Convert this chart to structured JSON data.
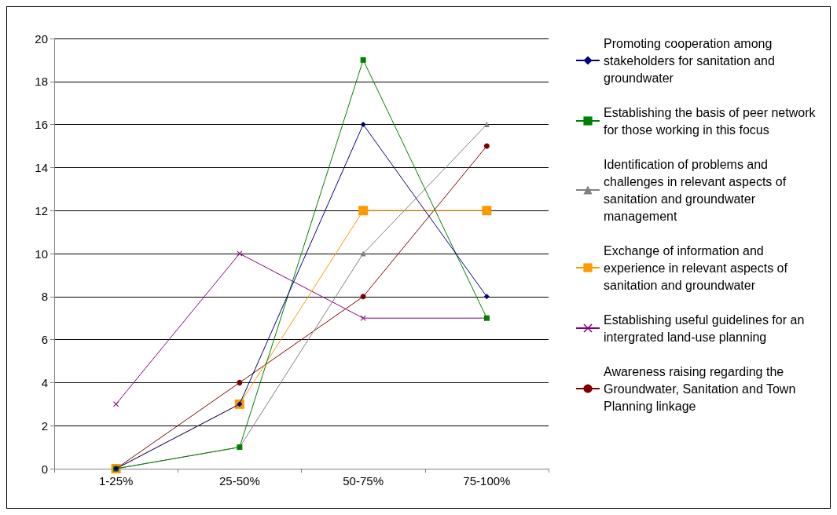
{
  "chart_data": {
    "type": "line",
    "categories": [
      "1-25%",
      "25-50%",
      "50-75%",
      "75-100%"
    ],
    "series": [
      {
        "name": "Promoting cooperation among stakeholders for sanitation and groundwater",
        "color": "#000080",
        "marker": "diamond",
        "values": [
          0,
          3,
          16,
          8
        ]
      },
      {
        "name": "Establishing the basis of peer network for those working in this focus",
        "color": "#008000",
        "marker": "square",
        "values": [
          0,
          1,
          19,
          7
        ]
      },
      {
        "name": "Identification of problems and challenges in relevant aspects of sanitation and groundwater management",
        "color": "#808080",
        "marker": "triangle",
        "values": [
          0,
          1,
          10,
          16
        ]
      },
      {
        "name": "Exchange of information and experience in relevant aspects of sanitation and groundwater",
        "color": "#ff9900",
        "marker": "square",
        "values": [
          0,
          3,
          12,
          12
        ]
      },
      {
        "name": "Establishing useful guidelines for an intergrated land-use planning",
        "color": "#800080",
        "marker": "cross",
        "values": [
          3,
          10,
          7,
          7
        ]
      },
      {
        "name": "Awareness raising regarding the Groundwater, Sanitation and Town Planning linkage",
        "color": "#800000",
        "marker": "circle",
        "values": [
          0,
          4,
          8,
          15
        ]
      }
    ],
    "ylim": [
      0,
      20
    ],
    "yticks": [
      0,
      2,
      4,
      6,
      8,
      10,
      12,
      14,
      16,
      18,
      20
    ],
    "grid": "y",
    "legend": "right",
    "line_style": "solid"
  }
}
